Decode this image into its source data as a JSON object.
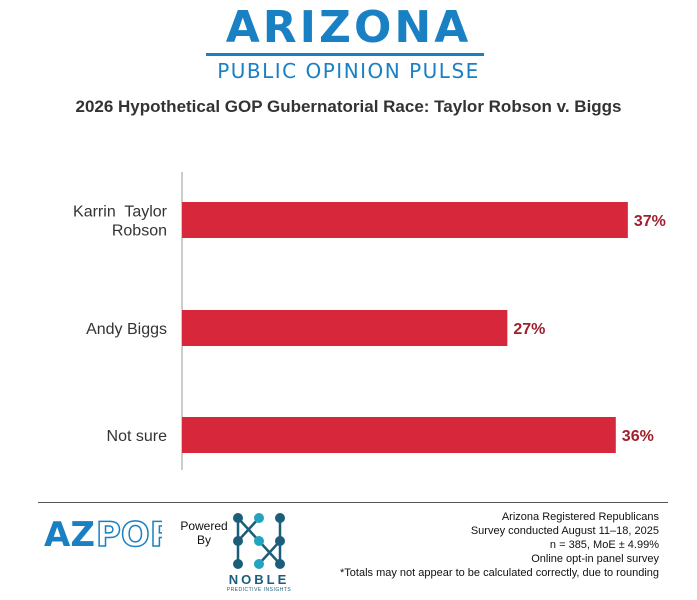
{
  "header": {
    "brand_title": "ARIZONA",
    "brand_subtitle": "PUBLIC OPINION PULSE"
  },
  "chart_data": {
    "type": "bar",
    "orientation": "horizontal",
    "title": "2026 Hypothetical GOP Gubernatorial Race: Taylor Robson v. Biggs",
    "categories": [
      [
        "Karrin  Taylor",
        "Robson"
      ],
      [
        "Andy Biggs"
      ],
      [
        "Not sure"
      ]
    ],
    "values": [
      37,
      27,
      36
    ],
    "value_labels": [
      "37%",
      "27%",
      "36%"
    ],
    "xlim": [
      0,
      40
    ],
    "grid": false,
    "legend": "none",
    "colors": {
      "bar": "#d6283a",
      "value_label": "#a01f2d",
      "axis": "#999999"
    }
  },
  "footer": {
    "logo_text": {
      "az": "AZ",
      "pop": "POP"
    },
    "powered_by": [
      "Powered",
      "By"
    ],
    "noble_name": "NOBLE",
    "noble_tagline": "PREDICTIVE INSIGHTS",
    "notes": [
      "Arizona Registered Republicans",
      "Survey conducted August 11–18, 2025",
      "n = 385, MoE ± 4.99%",
      "Online opt-in panel survey",
      "*Totals may not appear to be calculated correctly, due to rounding"
    ],
    "colors": {
      "brand": "#1a80c4",
      "noble": "#1c5d7a",
      "noble_accent": "#22a3bf"
    }
  }
}
